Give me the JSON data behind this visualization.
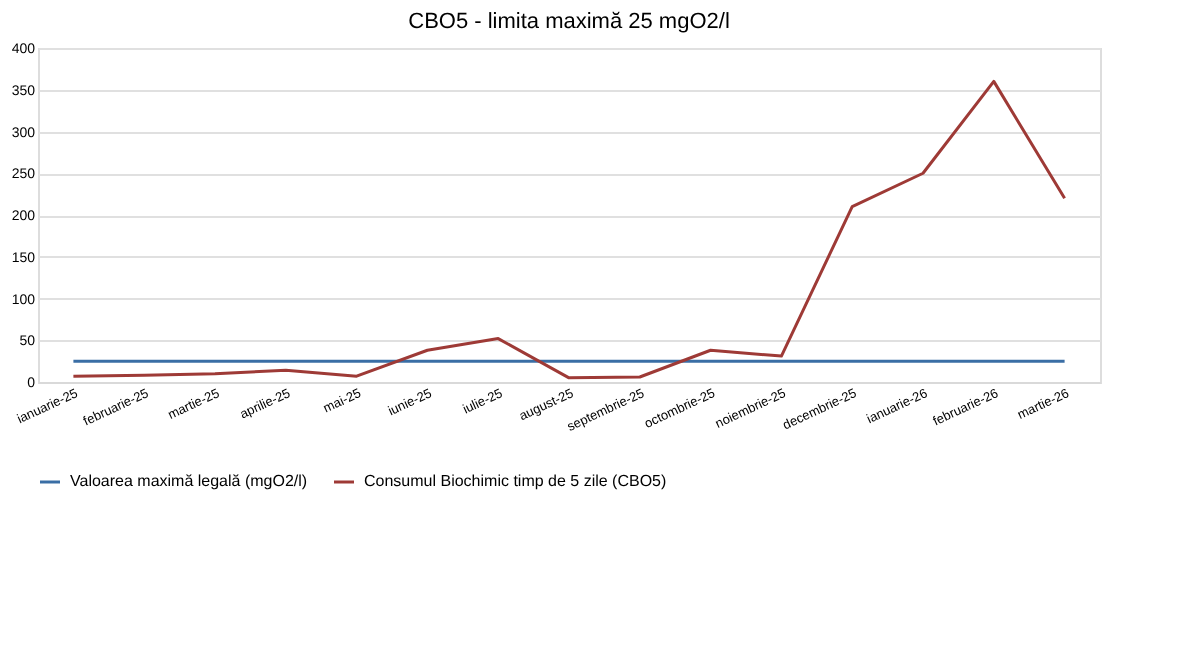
{
  "chart_data": {
    "type": "line",
    "title": "CBO5 - limita maximă 25 mgO2/l",
    "categories": [
      "ianuarie-25",
      "februarie-25",
      "martie-25",
      "aprilie-25",
      "mai-25",
      "iunie-25",
      "iulie-25",
      "august-25",
      "septembrie-25",
      "octombrie-25",
      "noiembrie-25",
      "decembrie-25",
      "ianuarie-26",
      "februarie-26",
      "martie-26"
    ],
    "series": [
      {
        "name": "Valoarea maximă legală (mgO2/l)",
        "color": "#3a6ea5",
        "values": [
          25,
          25,
          25,
          25,
          25,
          25,
          25,
          25,
          25,
          25,
          25,
          25,
          25,
          25,
          25
        ]
      },
      {
        "name": "Consumul Biochimic timp de 5 zile (CBO5)",
        "color": "#9e3a36",
        "values": [
          7,
          8,
          10,
          14,
          7,
          38,
          52,
          5,
          6,
          38,
          31,
          210,
          250,
          360,
          220
        ]
      }
    ],
    "ylim": [
      0,
      400
    ],
    "yticks": [
      0,
      50,
      100,
      150,
      200,
      250,
      300,
      350,
      400
    ],
    "grid": "y",
    "legend": "bottom",
    "line_style": "solid",
    "marker": "none"
  }
}
